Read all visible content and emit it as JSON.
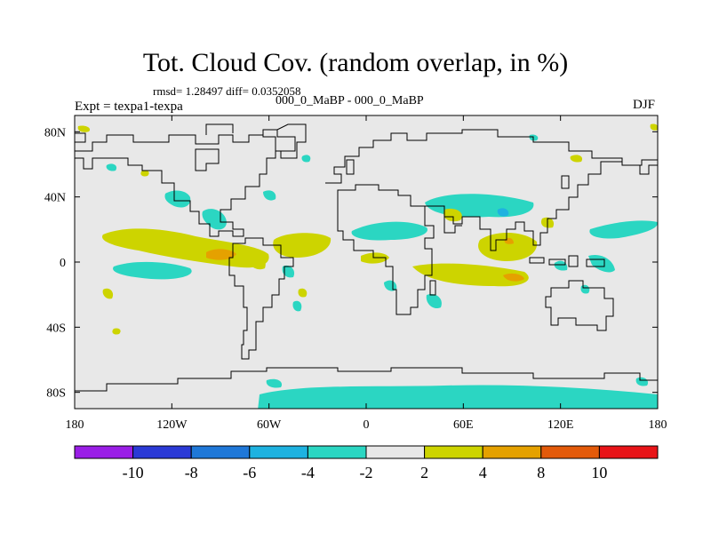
{
  "title": "Tot. Cloud Cov. (random overlap, in %)",
  "stats": "rmsd= 1.28497 diff= 0.0352058",
  "experiment": "Expt = texpa1-texpa",
  "experiment_names": "000_0_MaBP - 000_0_MaBP",
  "season": "DJF",
  "x_ticks": [
    "180",
    "120W",
    "60W",
    "0",
    "60E",
    "120E",
    "180"
  ],
  "y_ticks": [
    "80N",
    "40N",
    "0",
    "40S",
    "80S"
  ],
  "colorbar": {
    "labels": [
      "-10",
      "-8",
      "-6",
      "-4",
      "-2",
      "2",
      "4",
      "8",
      "10"
    ],
    "colors": [
      "#9a1ee6",
      "#2b3ad6",
      "#1f78d8",
      "#1eb2e0",
      "#2bd6c2",
      "#e8e8e8",
      "#cdd400",
      "#e5a100",
      "#e35a0a",
      "#e81418"
    ]
  },
  "colors": {
    "background": "#e8e8e8",
    "coastline": "#000000",
    "teal_negative": "#2bd6c2",
    "blue_negative": "#1eb2e0",
    "yellow_positive": "#cdd400",
    "orange_positive": "#e5a100"
  }
}
